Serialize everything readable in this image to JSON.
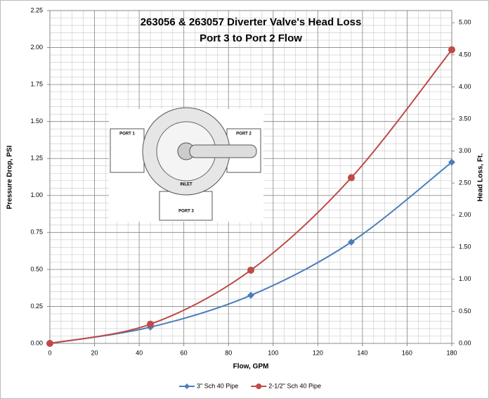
{
  "chart_data": {
    "type": "line",
    "title": [
      "263056 & 263057 Diverter Valve's Head Loss",
      "Port 3 to Port 2 Flow"
    ],
    "x_label": "Flow, GPM",
    "y_label": "Pressure Drop, PSI",
    "y2_label": "Head Loss, Ft.",
    "x": [
      0,
      45,
      90,
      135,
      180
    ],
    "series": [
      {
        "name": "3\" Sch 40 Pipe",
        "color": "#4a7ebb",
        "marker": "diamond",
        "values": [
          0,
          0.11,
          0.325,
          0.685,
          1.225
        ]
      },
      {
        "name": "2-1/2\" Sch 40 Pipe",
        "color": "#be4b48",
        "marker": "circle",
        "values": [
          0,
          0.13,
          0.495,
          1.12,
          1.985
        ]
      }
    ],
    "xlim": [
      0,
      180
    ],
    "xticks": [
      0,
      20,
      40,
      60,
      80,
      100,
      120,
      140,
      160,
      180
    ],
    "ylim": [
      0,
      2.25
    ],
    "yticks": [
      {
        "value": 0,
        "label": "0.00"
      },
      {
        "value": 0.25,
        "label": "0.25"
      },
      {
        "value": 0.5,
        "label": "0.50"
      },
      {
        "value": 0.75,
        "label": "0.75"
      },
      {
        "value": 1,
        "label": "1.00"
      },
      {
        "value": 1.25,
        "label": "1.25"
      },
      {
        "value": 1.5,
        "label": "1.50"
      },
      {
        "value": 1.75,
        "label": "1.75"
      },
      {
        "value": 2,
        "label": "2.00"
      },
      {
        "value": 2.25,
        "label": "2.25"
      }
    ],
    "y2lim": [
      0,
      5.19
    ],
    "y2ticks": [
      {
        "value": 0,
        "label": "0.00"
      },
      {
        "value": 0.5,
        "label": "0.50"
      },
      {
        "value": 1,
        "label": "1.00"
      },
      {
        "value": 1.5,
        "label": "1.50"
      },
      {
        "value": 2,
        "label": "2.00"
      },
      {
        "value": 2.5,
        "label": "2.50"
      },
      {
        "value": 3,
        "label": "3.00"
      },
      {
        "value": 3.5,
        "label": "3.50"
      },
      {
        "value": 4,
        "label": "4.00"
      },
      {
        "value": 4.5,
        "label": "4.50"
      },
      {
        "value": 5,
        "label": "5.00"
      }
    ],
    "grid": true,
    "minor_grid_step": {
      "x": 5,
      "y": 0.05
    },
    "legend": "bottom",
    "image_labels": [
      "PORT 1",
      "PORT 2",
      "PORT 3",
      "INLET"
    ]
  }
}
